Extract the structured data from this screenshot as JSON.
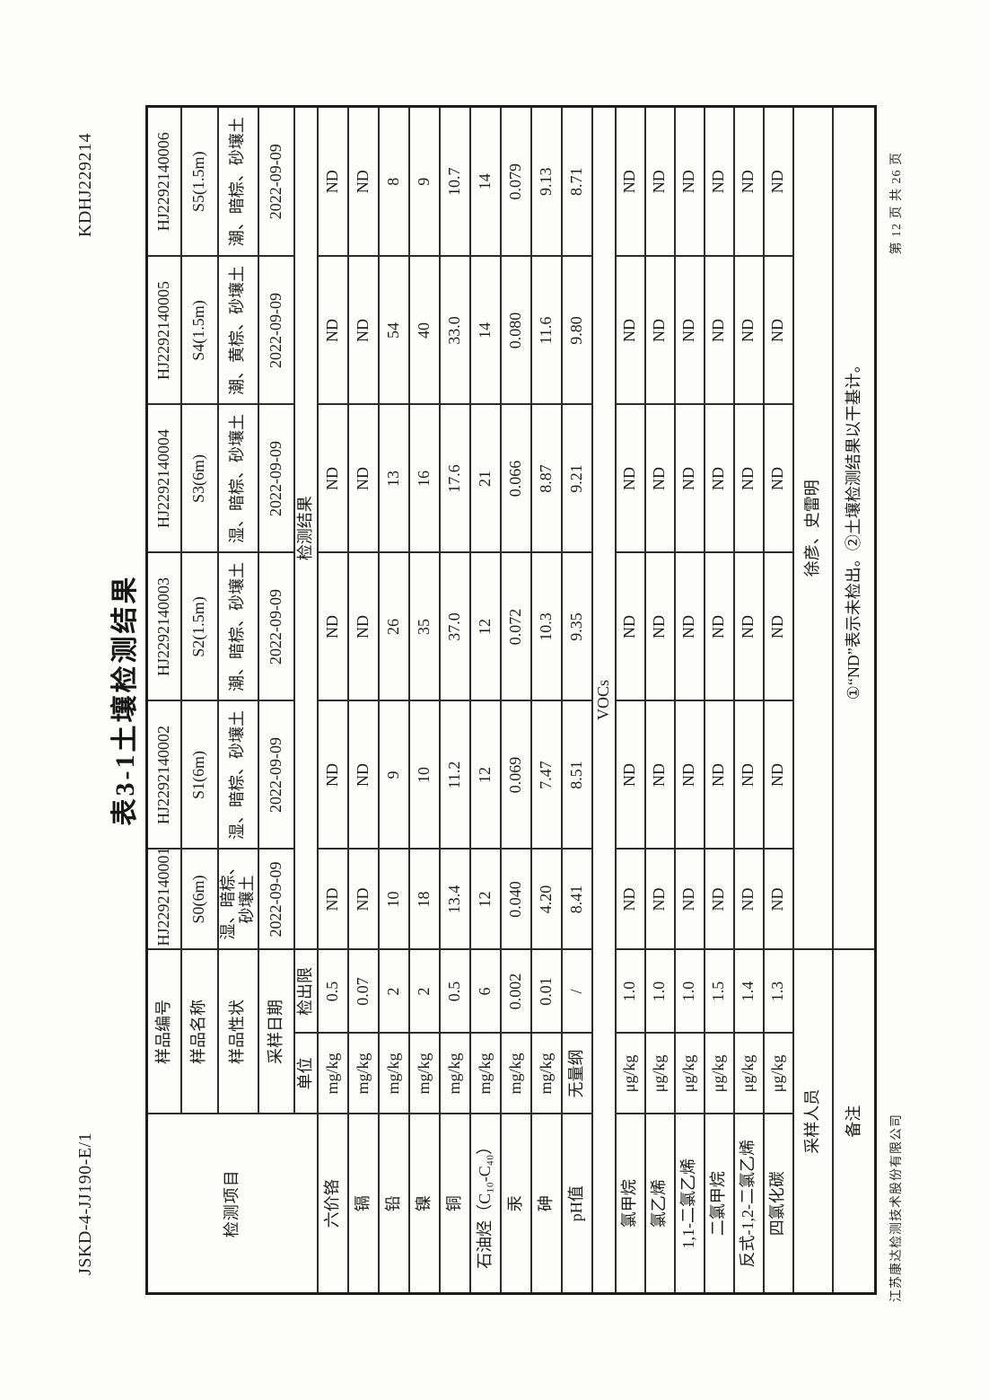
{
  "page": {
    "doc_code": "JSKD-4-JJ190-E/1",
    "report_no": "KDHJ229214",
    "title": "表3-1土壤检测结果",
    "footer_company": "江苏康达检测技术股份有限公司",
    "footer_page": "第 12 页 共 26 页"
  },
  "table": {
    "header": {
      "item_label": "检测项目",
      "sample_id_label": "样品编号",
      "sample_name_label": "样品名称",
      "sample_desc_label": "样品性状",
      "sample_date_label": "采样日期",
      "unit_label": "单位",
      "limit_label": "检出限",
      "result_label": "检测结果"
    },
    "samples": [
      {
        "id": "HJ2292140001",
        "name": "S0(6m)",
        "desc": "湿、暗棕、砂壤土",
        "date": "2022-09-09"
      },
      {
        "id": "HJ2292140002",
        "name": "S1(6m)",
        "desc": "湿、暗棕、砂壤土",
        "date": "2022-09-09"
      },
      {
        "id": "HJ2292140003",
        "name": "S2(1.5m)",
        "desc": "潮、暗棕、砂壤土",
        "date": "2022-09-09"
      },
      {
        "id": "HJ2292140004",
        "name": "S3(6m)",
        "desc": "湿、暗棕、砂壤土",
        "date": "2022-09-09"
      },
      {
        "id": "HJ2292140005",
        "name": "S4(1.5m)",
        "desc": "潮、黄棕、砂壤土",
        "date": "2022-09-09"
      },
      {
        "id": "HJ2292140006",
        "name": "S5(1.5m)",
        "desc": "潮、暗棕、砂壤土",
        "date": "2022-09-09"
      }
    ],
    "analytes": [
      {
        "name": "六价铬",
        "unit": "mg/kg",
        "limit": "0.5",
        "values": [
          "ND",
          "ND",
          "ND",
          "ND",
          "ND",
          "ND"
        ]
      },
      {
        "name": "镉",
        "unit": "mg/kg",
        "limit": "0.07",
        "values": [
          "ND",
          "ND",
          "ND",
          "ND",
          "ND",
          "ND"
        ]
      },
      {
        "name": "铅",
        "unit": "mg/kg",
        "limit": "2",
        "values": [
          "10",
          "9",
          "26",
          "13",
          "54",
          "8"
        ]
      },
      {
        "name": "镍",
        "unit": "mg/kg",
        "limit": "2",
        "values": [
          "18",
          "10",
          "35",
          "16",
          "40",
          "9"
        ]
      },
      {
        "name": "铜",
        "unit": "mg/kg",
        "limit": "0.5",
        "values": [
          "13.4",
          "11.2",
          "37.0",
          "17.6",
          "33.0",
          "10.7"
        ]
      },
      {
        "name": "石油烃（C₁₀-C₄₀）",
        "unit": "mg/kg",
        "limit": "6",
        "values": [
          "12",
          "12",
          "12",
          "21",
          "14",
          "14"
        ]
      },
      {
        "name": "汞",
        "unit": "mg/kg",
        "limit": "0.002",
        "values": [
          "0.040",
          "0.069",
          "0.072",
          "0.066",
          "0.080",
          "0.079"
        ]
      },
      {
        "name": "砷",
        "unit": "mg/kg",
        "limit": "0.01",
        "values": [
          "4.20",
          "7.47",
          "10.3",
          "8.87",
          "11.6",
          "9.13"
        ]
      },
      {
        "name": "pH值",
        "unit": "无量纲",
        "limit": "/",
        "values": [
          "8.41",
          "8.51",
          "9.35",
          "9.21",
          "9.80",
          "8.71"
        ]
      }
    ],
    "section_vocs": "VOCs",
    "vocs": [
      {
        "name": "氯甲烷",
        "unit": "μg/kg",
        "limit": "1.0",
        "values": [
          "ND",
          "ND",
          "ND",
          "ND",
          "ND",
          "ND"
        ]
      },
      {
        "name": "氯乙烯",
        "unit": "μg/kg",
        "limit": "1.0",
        "values": [
          "ND",
          "ND",
          "ND",
          "ND",
          "ND",
          "ND"
        ]
      },
      {
        "name": "1,1-二氯乙烯",
        "unit": "μg/kg",
        "limit": "1.0",
        "values": [
          "ND",
          "ND",
          "ND",
          "ND",
          "ND",
          "ND"
        ]
      },
      {
        "name": "二氯甲烷",
        "unit": "μg/kg",
        "limit": "1.5",
        "values": [
          "ND",
          "ND",
          "ND",
          "ND",
          "ND",
          "ND"
        ]
      },
      {
        "name": "反式-1,2-二氯乙烯",
        "unit": "μg/kg",
        "limit": "1.4",
        "values": [
          "ND",
          "ND",
          "ND",
          "ND",
          "ND",
          "ND"
        ]
      },
      {
        "name": "四氯化碳",
        "unit": "μg/kg",
        "limit": "1.3",
        "values": [
          "ND",
          "ND",
          "ND",
          "ND",
          "ND",
          "ND"
        ]
      }
    ],
    "sampler_label": "采样人员",
    "sampler_value": "徐彦、史雷明",
    "remark_label": "备注",
    "remark_value": "①“ND”表示未检出。②土壤检测结果以干基计。"
  }
}
